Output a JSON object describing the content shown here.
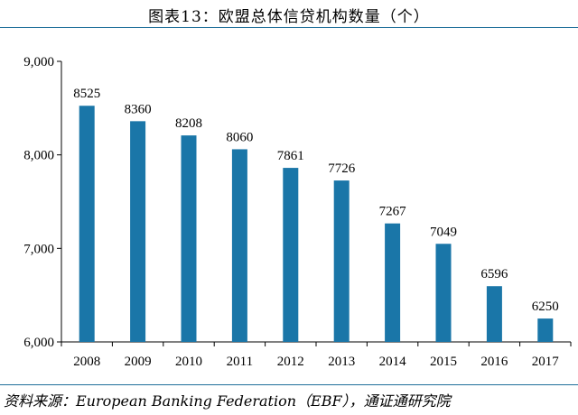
{
  "header": {
    "title": "图表13：欧盟总体信贷机构数量（个）"
  },
  "footer": {
    "source": "资料来源：European Banking Federation（EBF），通证通研究院"
  },
  "colors": {
    "bar": "#1a76a8",
    "rule": "#1f6f9a"
  },
  "chart_data": {
    "type": "bar",
    "title": "图表13：欧盟总体信贷机构数量（个）",
    "xlabel": "",
    "ylabel": "",
    "categories": [
      "2008",
      "2009",
      "2010",
      "2011",
      "2012",
      "2013",
      "2014",
      "2015",
      "2016",
      "2017"
    ],
    "values": [
      8525,
      8360,
      8208,
      8060,
      7861,
      7726,
      7267,
      7049,
      6596,
      6250
    ],
    "ylim": [
      6000,
      9000
    ],
    "yticks": [
      6000,
      7000,
      8000,
      9000
    ],
    "ytick_labels": [
      "6,000",
      "7,000",
      "8,000",
      "9,000"
    ],
    "grid": false
  }
}
